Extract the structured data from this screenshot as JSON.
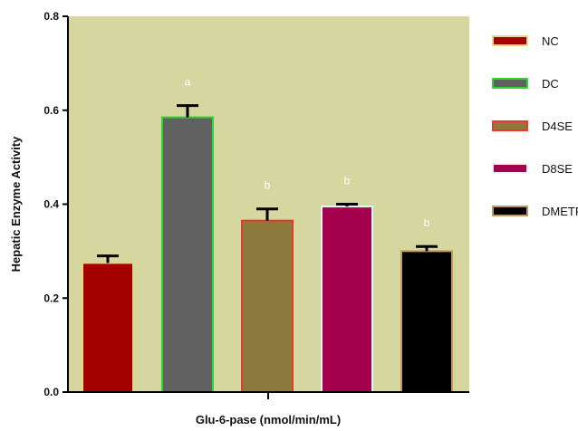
{
  "chart_data": {
    "type": "bar",
    "categories": [
      "NC",
      "DC",
      "D4SE",
      "D8SE",
      "DMETF"
    ],
    "values": [
      0.275,
      0.585,
      0.365,
      0.395,
      0.3
    ],
    "errors": [
      0.015,
      0.025,
      0.025,
      0.005,
      0.01
    ],
    "annotations": [
      "",
      "a",
      "b",
      "b",
      "b"
    ],
    "title": "",
    "xlabel": "Glu-6-pase (nmol/min/mL)",
    "ylabel": "Hepatic Enzyme Activity",
    "ylim": [
      0,
      0.8
    ],
    "yticks": [
      "0.0",
      "0.2",
      "0.4",
      "0.6",
      "0.8"
    ],
    "grid": false,
    "legend_position": "right",
    "legend": [
      "NC",
      "DC",
      "D4SE",
      "D8SE",
      "DMETF"
    ],
    "colors": {
      "plot_background": "#D6D6A1",
      "fill": [
        "#A50000",
        "#616161",
        "#8C7A3C",
        "#A5004E",
        "#000000"
      ],
      "border": [
        "#E8D77E",
        "#2FD62F",
        "#E83A2A",
        "#F2F2F2",
        "#C09A60"
      ],
      "error_bar": "#000000"
    }
  }
}
